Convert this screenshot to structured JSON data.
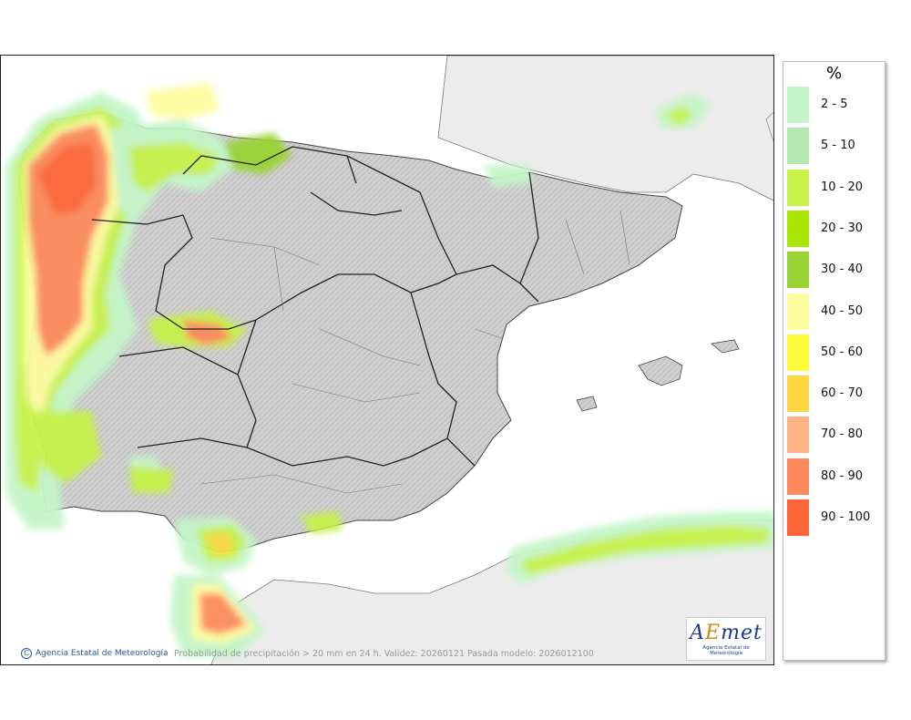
{
  "legend": {
    "title": "%",
    "items": [
      {
        "label": "2 - 5",
        "color": "#c4f5c8"
      },
      {
        "label": "5 - 10",
        "color": "#b3e8b3"
      },
      {
        "label": "10 - 20",
        "color": "#c6f24a"
      },
      {
        "label": "20 - 30",
        "color": "#a8e600"
      },
      {
        "label": "30 - 40",
        "color": "#9ad334"
      },
      {
        "label": "40 - 50",
        "color": "#fdfc9f"
      },
      {
        "label": "50 - 60",
        "color": "#fdfc3c"
      },
      {
        "label": "60 - 70",
        "color": "#fdd643"
      },
      {
        "label": "70 - 80",
        "color": "#fdb386"
      },
      {
        "label": "80 - 90",
        "color": "#fd8a5c"
      },
      {
        "label": "90 - 100",
        "color": "#fd6638"
      }
    ]
  },
  "map": {
    "land_color": "#cfcfcf",
    "sea_color": "#ffffff",
    "other_land_color": "#ebebeb"
  },
  "footer": {
    "agency": "Agencia Estatal de Meteorología",
    "caption": "Probabilidad de precipitación > 20 mm en 24 h. Validez: 20260121 Pasada modelo: 2026012100"
  },
  "logo": {
    "text": "AEMET",
    "subtitle": "Agencia Estatal de Meteorología"
  }
}
